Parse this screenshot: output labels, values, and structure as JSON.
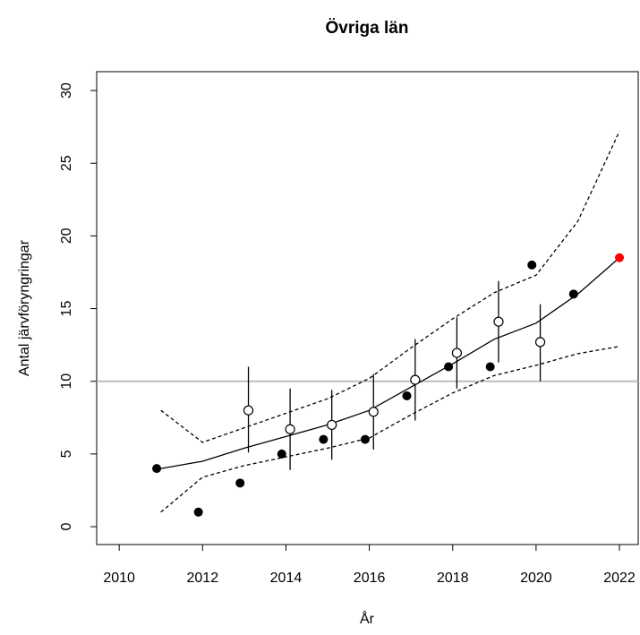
{
  "chart_data": {
    "type": "line",
    "title": "Övriga län",
    "x_label": "År",
    "y_label": "Antal järvföryngringar",
    "xlim": [
      2009.46,
      2022.45
    ],
    "ylim": [
      -1.23,
      31.3
    ],
    "xticks": [
      2010,
      2012,
      2014,
      2016,
      2018,
      2020,
      2022
    ],
    "yticks": [
      0,
      5,
      10,
      15,
      20,
      25,
      30
    ],
    "reference_line": {
      "value": 10,
      "color": "#bebebe"
    },
    "trend": {
      "color": "#000000",
      "x": [
        2011,
        2012,
        2013,
        2014,
        2015,
        2016,
        2017,
        2018,
        2019,
        2020,
        2021,
        2022
      ],
      "values": [
        4.0,
        4.5,
        5.4,
        6.2,
        7.0,
        8.0,
        9.6,
        11.2,
        12.9,
        14.0,
        16.0,
        18.5
      ],
      "upper": [
        8.0,
        5.8,
        6.8,
        7.8,
        8.8,
        10.2,
        12.3,
        14.3,
        16.1,
        17.3,
        21.0,
        27.2
      ],
      "lower": [
        1.0,
        3.4,
        4.2,
        4.8,
        5.4,
        6.1,
        7.7,
        9.2,
        10.4,
        11.1,
        11.9,
        12.4
      ]
    },
    "observed": {
      "color": "#000000",
      "x": [
        2010.9,
        2011.9,
        2012.9,
        2013.9,
        2014.9,
        2015.9,
        2016.9,
        2017.9,
        2018.9,
        2019.9,
        2020.9
      ],
      "values": [
        4,
        1,
        3,
        5,
        6,
        6,
        9,
        11,
        11,
        18,
        16
      ]
    },
    "estimated": {
      "color": "#000000",
      "x": [
        2013.1,
        2014.1,
        2015.1,
        2016.1,
        2017.1,
        2018.1,
        2019.1,
        2020.1
      ],
      "values": [
        8.0,
        6.7,
        7.0,
        7.9,
        10.1,
        11.95,
        14.1,
        12.7
      ],
      "lower": [
        5.1,
        3.9,
        4.6,
        5.3,
        7.3,
        9.5,
        11.3,
        10.0
      ],
      "upper": [
        11.0,
        9.5,
        9.4,
        10.5,
        12.9,
        14.4,
        16.9,
        15.3
      ]
    },
    "forecast": {
      "color": "#ff0000",
      "x": [
        2022
      ],
      "values": [
        18.5
      ]
    }
  }
}
